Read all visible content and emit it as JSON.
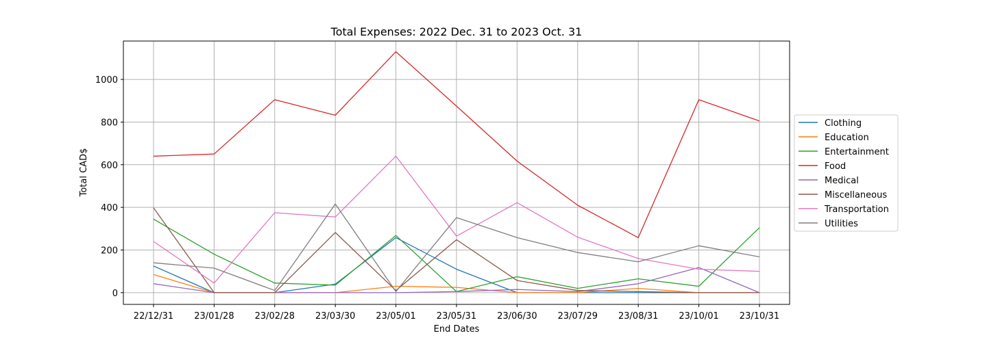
{
  "chart_data": {
    "type": "line",
    "title": "Total Expenses: 2022 Dec. 31 to 2023 Oct. 31",
    "xlabel": "End Dates",
    "ylabel": "Total CAD$",
    "categories": [
      "22/12/31",
      "23/01/28",
      "23/02/28",
      "23/03/30",
      "23/05/01",
      "23/05/31",
      "23/06/30",
      "23/07/29",
      "23/08/31",
      "23/10/01",
      "23/10/31"
    ],
    "ylim": [
      -55,
      1180
    ],
    "yticks": [
      0,
      200,
      400,
      600,
      800,
      1000
    ],
    "grid": true,
    "legend_position": "center-right",
    "series": [
      {
        "name": "Clothing",
        "color": "#1f77b4",
        "values": [
          125,
          0,
          0,
          40,
          258,
          110,
          0,
          0,
          0,
          0,
          0
        ]
      },
      {
        "name": "Education",
        "color": "#ff7f0e",
        "values": [
          85,
          0,
          0,
          0,
          30,
          25,
          0,
          0,
          20,
          0,
          0
        ]
      },
      {
        "name": "Entertainment",
        "color": "#2ca02c",
        "values": [
          345,
          180,
          45,
          35,
          268,
          5,
          75,
          20,
          65,
          30,
          305
        ]
      },
      {
        "name": "Food",
        "color": "#d62728",
        "values": [
          640,
          650,
          905,
          832,
          1130,
          875,
          617,
          410,
          258,
          905,
          805
        ]
      },
      {
        "name": "Medical",
        "color": "#9467bd",
        "values": [
          42,
          0,
          0,
          0,
          0,
          5,
          15,
          5,
          42,
          118,
          0
        ]
      },
      {
        "name": "Miscellaneous",
        "color": "#8c564b",
        "values": [
          398,
          0,
          0,
          282,
          10,
          248,
          57,
          10,
          5,
          0,
          0
        ]
      },
      {
        "name": "Transportation",
        "color": "#e377c2",
        "values": [
          240,
          45,
          375,
          355,
          640,
          265,
          422,
          260,
          160,
          110,
          100
        ]
      },
      {
        "name": "Utilities",
        "color": "#7f7f7f",
        "values": [
          140,
          115,
          10,
          416,
          5,
          352,
          258,
          188,
          145,
          220,
          168
        ]
      }
    ]
  }
}
